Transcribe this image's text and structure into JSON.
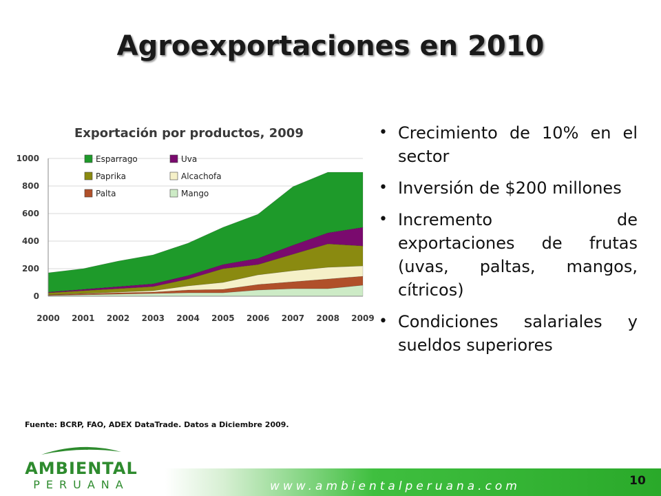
{
  "title": "Agroexportaciones en 2010",
  "bullets": [
    "Crecimiento de 10% en el sector",
    "Inversión de $200 millones",
    "Incremento de exportaciones de frutas (uvas, paltas, mangos, cítricos)",
    "Condiciones salariales y sueldos superiores"
  ],
  "source": "Fuente: BCRP, FAO, ADEX DataTrade. Datos a Diciembre 2009.",
  "logo": {
    "line1": "AMBIENTAL",
    "line2": "PERUANA"
  },
  "footer": {
    "website": "www.ambientalperuana.com",
    "page_number": "10"
  },
  "colors": {
    "Esparrago": "#1e9a2a",
    "Uva": "#7a0a6e",
    "Paprika": "#8a8a10",
    "Alcachofa": "#f5f0c8",
    "Palta": "#b0502a",
    "Mango": "#cdebc6"
  },
  "chart_data": {
    "type": "area",
    "stacked": true,
    "title": "Exportación por productos, 2009",
    "xlabel": "",
    "ylabel": "",
    "ylim": [
      0,
      1000
    ],
    "yticks": [
      0,
      200,
      400,
      600,
      800,
      1000
    ],
    "x": [
      "2000",
      "2001",
      "2002",
      "2003",
      "2004",
      "2005",
      "2006",
      "2007",
      "2008",
      "2009"
    ],
    "legend_placement": "top-left",
    "series": [
      {
        "name": "Mango",
        "values": [
          5,
          10,
          15,
          20,
          25,
          25,
          45,
          55,
          55,
          80
        ]
      },
      {
        "name": "Palta",
        "values": [
          5,
          8,
          10,
          10,
          20,
          25,
          40,
          50,
          70,
          65
        ]
      },
      {
        "name": "Alcachofa",
        "values": [
          0,
          2,
          5,
          10,
          30,
          50,
          70,
          80,
          85,
          75
        ]
      },
      {
        "name": "Paprika",
        "values": [
          15,
          20,
          25,
          30,
          50,
          100,
          75,
          120,
          170,
          145
        ]
      },
      {
        "name": "Uva",
        "values": [
          5,
          10,
          15,
          20,
          25,
          30,
          45,
          65,
          80,
          135
        ]
      },
      {
        "name": "Esparrago",
        "values": [
          140,
          150,
          185,
          210,
          235,
          270,
          320,
          425,
          440,
          400
        ]
      }
    ]
  }
}
